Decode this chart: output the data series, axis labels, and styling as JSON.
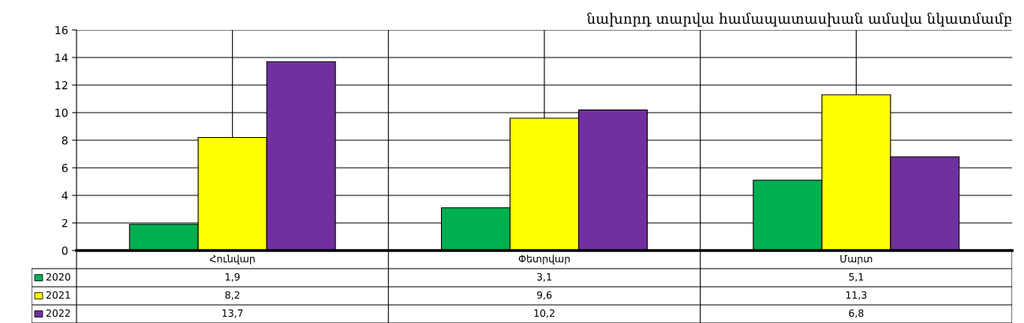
{
  "chart_data": {
    "type": "bar",
    "title": "նախորդ տարվա համապատասխան ամսվա նկատմամբ",
    "categories": [
      "Հունվար",
      "Փետրվար",
      "Մարտ"
    ],
    "series": [
      {
        "name": "2020",
        "color": "#00b050",
        "values": [
          1.9,
          3.1,
          5.1
        ],
        "value_labels": [
          "1,9",
          "3,1",
          "5,1"
        ]
      },
      {
        "name": "2021",
        "color": "#ffff00",
        "values": [
          8.2,
          9.6,
          11.3
        ],
        "value_labels": [
          "8,2",
          "9,6",
          "11,3"
        ]
      },
      {
        "name": "2022",
        "color": "#7030a0",
        "values": [
          13.7,
          10.2,
          6.8
        ],
        "value_labels": [
          "13,7",
          "10,2",
          "6,8"
        ]
      }
    ],
    "ylim": [
      0,
      16
    ],
    "yticks": [
      0,
      2,
      4,
      6,
      8,
      10,
      12,
      14,
      16
    ],
    "grid": true,
    "legend": "bottom left"
  }
}
